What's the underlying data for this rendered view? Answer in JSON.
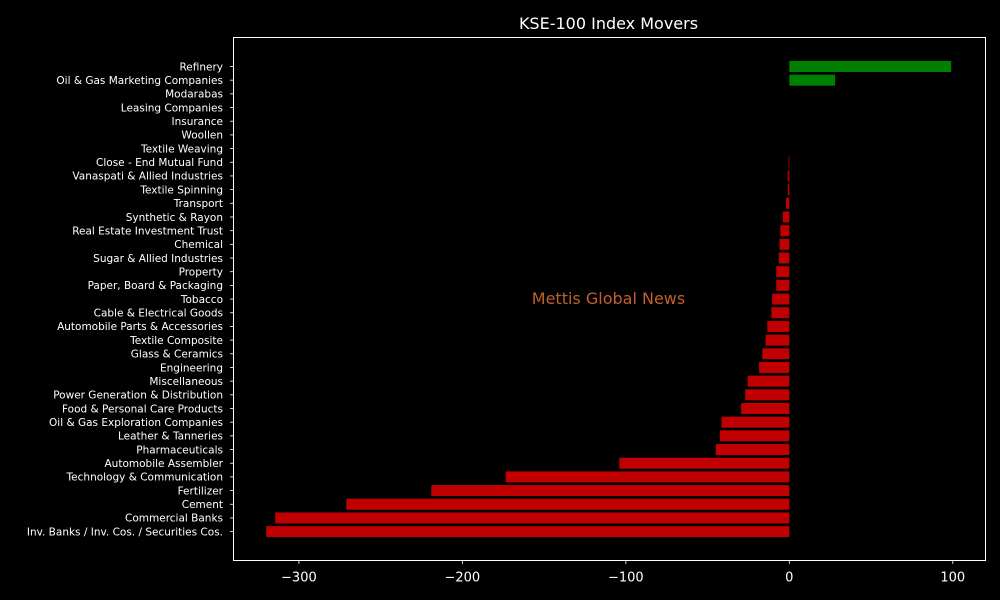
{
  "chart_data": {
    "type": "bar",
    "orientation": "horizontal",
    "title": "KSE-100 Index Movers",
    "watermark": "Mettis Global News",
    "xlabel": "",
    "ylabel": "",
    "xlim": [
      -340,
      120
    ],
    "xticks": [
      -300,
      -200,
      -100,
      0,
      100
    ],
    "xtick_labels": [
      "−300",
      "−200",
      "−100",
      "0",
      "100"
    ],
    "grid": false,
    "colors": {
      "positive": "#008000",
      "negative": "#c00000",
      "background": "#000000",
      "axes": "#ffffff",
      "text": "#ffffff"
    },
    "categories": [
      "Refinery",
      "Oil & Gas Marketing Companies",
      "Modarabas",
      "Leasing Companies",
      "Insurance",
      "Woollen",
      "Textile Weaving",
      "Close - End Mutual Fund",
      "Vanaspati & Allied Industries",
      "Textile Spinning",
      "Transport",
      "Synthetic & Rayon",
      "Real Estate Investment Trust",
      "Chemical",
      "Sugar & Allied Industries",
      "Property",
      "Paper, Board & Packaging",
      "Tobacco",
      "Cable & Electrical Goods",
      "Automobile Parts & Accessories",
      "Textile Composite",
      "Glass & Ceramics",
      "Engineering",
      "Miscellaneous",
      "Power Generation & Distribution",
      "Food & Personal Care Products",
      "Oil & Gas Exploration Companies",
      "Leather & Tanneries",
      "Pharmaceuticals",
      "Automobile Assembler",
      "Technology & Communication",
      "Fertilizer",
      "Cement",
      "Commercial Banks",
      "Inv. Banks / Inv. Cos. / Securities Cos."
    ],
    "values": [
      99,
      28,
      0,
      0,
      0,
      0,
      0,
      -0.5,
      -1,
      -1,
      -2,
      -4,
      -5.5,
      -6,
      -6.5,
      -8,
      -8,
      -10.5,
      -11,
      -13.5,
      -14.5,
      -16.5,
      -18.5,
      -25.5,
      -27,
      -29.5,
      -41.5,
      -42.5,
      -45,
      -104,
      -173.5,
      -219,
      -271,
      -314.5,
      -320
    ]
  }
}
